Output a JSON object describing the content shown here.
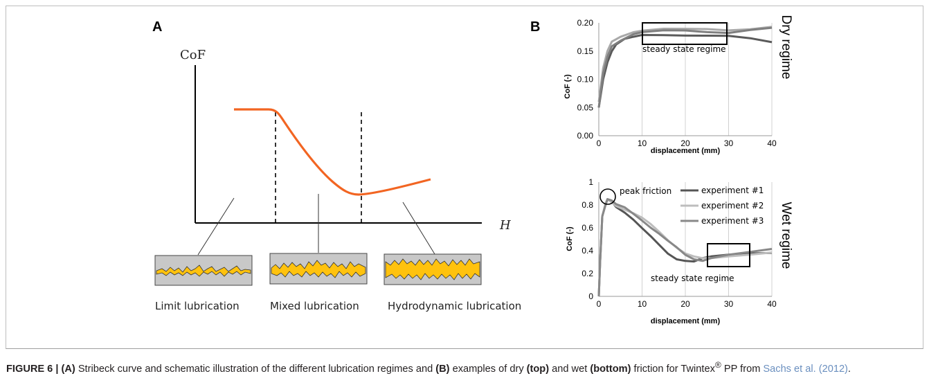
{
  "panel_a": {
    "letter": "A",
    "y_axis_label": "CoF",
    "x_axis_label": "H",
    "regimes": [
      "Limit lubrication",
      "Mixed lubrication",
      "Hydrodynamic lubrication"
    ],
    "curve_color": "#f26522",
    "asperity_fill": "#ffc20e",
    "box_fill": "#c8c8c8"
  },
  "panel_b": {
    "letter": "B",
    "regime_top": "Dry regime",
    "regime_bottom": "Wet regime",
    "annotation_steady": "steady state regime",
    "annotation_peak": "peak friction"
  },
  "chart_data": [
    {
      "type": "line",
      "xlabel": "displacement (mm)",
      "ylabel": "CoF (-)",
      "xlim": [
        0,
        40
      ],
      "ylim": [
        0,
        0.2
      ],
      "x_ticks": [
        "0",
        "10",
        "20",
        "30",
        "40"
      ],
      "y_ticks": [
        "0.00",
        "0.05",
        "0.10",
        "0.15",
        "0.20"
      ],
      "grid": "vertical",
      "series": [
        {
          "color": "#5a5a5a",
          "x": [
            0,
            1,
            2,
            3,
            4,
            6,
            8,
            10,
            15,
            20,
            25,
            30,
            35,
            40
          ],
          "y": [
            0.05,
            0.1,
            0.13,
            0.15,
            0.16,
            0.17,
            0.175,
            0.18,
            0.18,
            0.178,
            0.176,
            0.175,
            0.172,
            0.167
          ]
        },
        {
          "color": "#a9a9a9",
          "x": [
            0,
            1,
            2,
            3,
            5,
            8,
            10,
            15,
            20,
            25,
            30,
            35,
            40
          ],
          "y": [
            0.06,
            0.12,
            0.15,
            0.165,
            0.175,
            0.185,
            0.188,
            0.19,
            0.188,
            0.187,
            0.186,
            0.19,
            0.195
          ]
        },
        {
          "color": "#7f7f7f",
          "x": [
            0,
            1,
            2,
            3,
            5,
            8,
            10,
            15,
            20,
            25,
            30,
            35,
            40
          ],
          "y": [
            0.05,
            0.11,
            0.14,
            0.16,
            0.17,
            0.18,
            0.182,
            0.185,
            0.186,
            0.185,
            0.184,
            0.188,
            0.19
          ]
        }
      ]
    },
    {
      "type": "line",
      "xlabel": "displacement (mm)",
      "ylabel": "CoF (-)",
      "xlim": [
        0,
        40
      ],
      "ylim": [
        0,
        1
      ],
      "x_ticks": [
        "0",
        "10",
        "20",
        "30",
        "40"
      ],
      "y_ticks": [
        "0",
        "0.2",
        "0.4",
        "0.6",
        "0.8",
        "1"
      ],
      "grid": "vertical",
      "legend": "top-right",
      "series": [
        {
          "name": "experiment #1",
          "color": "#555555",
          "x": [
            0,
            0.3,
            0.8,
            1.5,
            2,
            3,
            4,
            6,
            8,
            10,
            12,
            14,
            16,
            18,
            20,
            22,
            24,
            26,
            30,
            35,
            40
          ],
          "y": [
            0,
            0.3,
            0.7,
            0.8,
            0.84,
            0.82,
            0.78,
            0.74,
            0.68,
            0.6,
            0.52,
            0.44,
            0.37,
            0.33,
            0.32,
            0.31,
            0.33,
            0.34,
            0.36,
            0.38,
            0.39
          ]
        },
        {
          "name": "experiment #2",
          "color": "#bdbdbd",
          "x": [
            0,
            0.3,
            0.8,
            1.5,
            2,
            3,
            4,
            6,
            8,
            10,
            12,
            14,
            16,
            18,
            20,
            22,
            24,
            26,
            30,
            35,
            40
          ],
          "y": [
            0,
            0.3,
            0.7,
            0.8,
            0.85,
            0.83,
            0.8,
            0.76,
            0.72,
            0.68,
            0.63,
            0.57,
            0.5,
            0.43,
            0.37,
            0.34,
            0.33,
            0.34,
            0.36,
            0.37,
            0.38
          ]
        },
        {
          "name": "experiment #3",
          "color": "#888888",
          "x": [
            0,
            0.3,
            0.8,
            1.5,
            2,
            3,
            4,
            6,
            8,
            10,
            12,
            14,
            16,
            18,
            20,
            22,
            24,
            26,
            30,
            35,
            40
          ],
          "y": [
            0,
            0.3,
            0.7,
            0.8,
            0.86,
            0.84,
            0.8,
            0.77,
            0.72,
            0.67,
            0.61,
            0.55,
            0.48,
            0.42,
            0.36,
            0.33,
            0.32,
            0.34,
            0.36,
            0.38,
            0.41
          ]
        }
      ]
    }
  ],
  "caption": {
    "label": "FIGURE 6 | ",
    "a_marker": "(A)",
    "part1": " Stribeck curve and schematic illustration of the different lubrication regimes and ",
    "b_marker": "(B)",
    "part2": " examples of dry ",
    "top_marker": "(top)",
    "part3": " and wet ",
    "bottom_marker": "(bottom)",
    "part4": " friction for Twintex",
    "registered": "®",
    "part5": " PP from ",
    "ref": "Sachs et al. (2012)",
    "end": "."
  }
}
